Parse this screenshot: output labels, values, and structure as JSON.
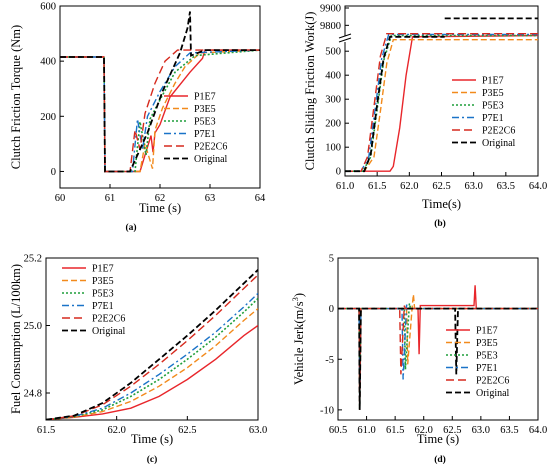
{
  "colors": {
    "P1E7": "#e8262b",
    "P3E5": "#f28a1c",
    "P5E3": "#1f9e3a",
    "P7E1": "#1a73c8",
    "P2E2C6": "#d62a1e",
    "Original": "#000000"
  },
  "chart_data": [
    {
      "type": "line",
      "panel_label": "(a)",
      "xlabel": "Time (s)",
      "ylabel": "Clutch Friction Torque (Nm)",
      "xlim": [
        60,
        64
      ],
      "ylim": [
        -60,
        600
      ],
      "xticks": [
        "60",
        "61",
        "62",
        "63",
        "64"
      ],
      "yticks": [
        "0",
        "200",
        "400",
        "600"
      ],
      "legend_position": "lower-right",
      "series": [
        {
          "name": "P1E7",
          "x": [
            60,
            60.88,
            60.9,
            61.6,
            61.82,
            61.86,
            61.9,
            62.0,
            62.2,
            62.6,
            62.85,
            62.9,
            64
          ],
          "y": [
            415,
            415,
            0,
            0,
            130,
            70,
            140,
            170,
            270,
            360,
            410,
            440,
            440
          ]
        },
        {
          "name": "P3E5",
          "x": [
            60,
            60.88,
            60.9,
            61.6,
            61.7,
            61.85,
            61.9,
            62.05,
            62.3,
            62.5,
            62.8,
            64
          ],
          "y": [
            415,
            415,
            0,
            0,
            100,
            10,
            150,
            230,
            320,
            380,
            430,
            440
          ]
        },
        {
          "name": "P5E3",
          "x": [
            60,
            60.88,
            60.9,
            61.5,
            61.6,
            61.72,
            61.8,
            62.0,
            62.3,
            62.7,
            64
          ],
          "y": [
            415,
            415,
            0,
            0,
            180,
            60,
            190,
            260,
            360,
            420,
            440
          ]
        },
        {
          "name": "P7E1",
          "x": [
            60,
            60.88,
            60.9,
            61.45,
            61.55,
            61.65,
            61.75,
            62.0,
            62.3,
            62.6,
            64
          ],
          "y": [
            415,
            415,
            0,
            0,
            190,
            80,
            200,
            290,
            380,
            430,
            440
          ]
        },
        {
          "name": "P2E2C6",
          "x": [
            60,
            60.88,
            60.9,
            61.4,
            61.5,
            61.6,
            61.7,
            61.9,
            62.1,
            62.35,
            64
          ],
          "y": [
            415,
            415,
            0,
            0,
            150,
            80,
            210,
            320,
            400,
            440,
            440
          ]
        },
        {
          "name": "Original",
          "x": [
            60,
            60.88,
            60.9,
            61.4,
            61.75,
            62.05,
            62.4,
            62.55,
            62.6,
            62.62,
            62.9,
            64
          ],
          "y": [
            415,
            415,
            0,
            0,
            140,
            290,
            430,
            520,
            580,
            420,
            440,
            440
          ]
        }
      ]
    },
    {
      "type": "line",
      "panel_label": "(b)",
      "xlabel": "Time(s)",
      "ylabel": "Clutch Sliding Friction Work(J)",
      "xlim": [
        61,
        64
      ],
      "ylim": [
        -20,
        600
      ],
      "axis_break": {
        "lower_top": 580,
        "upper_range": [
          9750,
          9900
        ]
      },
      "xticks": [
        "61.0",
        "61.5",
        "62.0",
        "62.5",
        "63.0",
        "63.5",
        "64.0"
      ],
      "yticks": [
        "0",
        "100",
        "200",
        "300",
        "400",
        "500",
        "9800",
        "9900"
      ],
      "legend_position": "right",
      "series": [
        {
          "name": "P1E7",
          "x": [
            61,
            61.7,
            61.75,
            61.85,
            61.95,
            62.05,
            64
          ],
          "y": [
            0,
            0,
            20,
            180,
            400,
            560,
            565
          ]
        },
        {
          "name": "P3E5",
          "x": [
            61,
            61.3,
            61.45,
            61.55,
            61.65,
            61.75,
            64
          ],
          "y": [
            0,
            0,
            60,
            250,
            450,
            548,
            548
          ]
        },
        {
          "name": "P5E3",
          "x": [
            61,
            61.28,
            61.4,
            61.5,
            61.6,
            61.72,
            64
          ],
          "y": [
            0,
            0,
            60,
            260,
            460,
            565,
            565
          ]
        },
        {
          "name": "P7E1",
          "x": [
            61,
            61.25,
            61.37,
            61.47,
            61.57,
            61.68,
            64
          ],
          "y": [
            0,
            0,
            60,
            260,
            470,
            570,
            570
          ]
        },
        {
          "name": "P2E2C6",
          "x": [
            61,
            61.25,
            61.35,
            61.45,
            61.55,
            61.65,
            64
          ],
          "y": [
            0,
            0,
            60,
            270,
            480,
            573,
            573
          ]
        },
        {
          "name": "Original",
          "x": [
            61,
            61.3,
            61.4,
            61.5,
            61.6,
            61.7,
            62.55
          ],
          "y": [
            0,
            0,
            70,
            280,
            470,
            560,
            560
          ],
          "upper_segment": {
            "x": [
              62.55,
              64
            ],
            "y": [
              9840,
              9840
            ]
          }
        }
      ]
    },
    {
      "type": "line",
      "panel_label": "(c)",
      "xlabel": "Time (s)",
      "ylabel": "Fuel Consumption (L/100km)",
      "xlim": [
        61.5,
        63
      ],
      "ylim": [
        24.72,
        25.2
      ],
      "xticks": [
        "61.5",
        "62.0",
        "62.5",
        "63.0"
      ],
      "yticks": [
        "24.8",
        "25.0",
        "25.2"
      ],
      "legend_position": "top-left",
      "series": [
        {
          "name": "P1E7",
          "x": [
            61.5,
            61.7,
            61.9,
            62.1,
            62.3,
            62.5,
            62.7,
            62.9,
            63
          ],
          "y": [
            24.721,
            24.728,
            24.738,
            24.755,
            24.79,
            24.84,
            24.9,
            24.97,
            25.0
          ]
        },
        {
          "name": "P3E5",
          "x": [
            61.5,
            61.7,
            61.9,
            62.1,
            62.3,
            62.5,
            62.7,
            62.9,
            63
          ],
          "y": [
            24.721,
            24.729,
            24.745,
            24.775,
            24.82,
            24.875,
            24.94,
            25.015,
            25.05
          ]
        },
        {
          "name": "P5E3",
          "x": [
            61.5,
            61.7,
            61.9,
            62.1,
            62.3,
            62.5,
            62.7,
            62.9,
            63
          ],
          "y": [
            24.721,
            24.73,
            24.75,
            24.79,
            24.84,
            24.9,
            24.965,
            25.04,
            25.08
          ]
        },
        {
          "name": "P7E1",
          "x": [
            61.5,
            61.7,
            61.9,
            62.1,
            62.3,
            62.5,
            62.7,
            62.9,
            63
          ],
          "y": [
            24.721,
            24.731,
            24.755,
            24.8,
            24.855,
            24.915,
            24.98,
            25.055,
            25.095
          ]
        },
        {
          "name": "P2E2C6",
          "x": [
            61.5,
            61.7,
            61.9,
            62.1,
            62.3,
            62.5,
            62.7,
            62.9,
            63
          ],
          "y": [
            24.721,
            24.732,
            24.765,
            24.82,
            24.885,
            24.955,
            25.03,
            25.11,
            25.15
          ]
        },
        {
          "name": "Original",
          "x": [
            61.5,
            61.7,
            61.9,
            62.1,
            62.3,
            62.5,
            62.7,
            62.9,
            63
          ],
          "y": [
            24.721,
            24.733,
            24.77,
            24.83,
            24.9,
            24.97,
            25.045,
            25.125,
            25.165
          ]
        }
      ]
    },
    {
      "type": "line",
      "panel_label": "(d)",
      "xlabel": "Time (s)",
      "ylabel": "Vehicle Jerk(m/s",
      "ylabel_sup": "3",
      "ylabel_end": ")",
      "xlim": [
        60.5,
        64
      ],
      "ylim": [
        -11,
        5
      ],
      "xticks": [
        "60.5",
        "61.0",
        "61.5",
        "62.0",
        "62.5",
        "63.0",
        "63.5",
        "64.0"
      ],
      "yticks": [
        "5",
        "0",
        "-5",
        "-10"
      ],
      "legend_position": "lower-right",
      "series": [
        {
          "name": "P1E7",
          "x": [
            60.5,
            60.87,
            60.88,
            60.9,
            61.9,
            61.92,
            61.94,
            62.0,
            62.88,
            62.9,
            62.92,
            64
          ],
          "y": [
            0,
            0,
            -10,
            0,
            0,
            -4.5,
            0.3,
            0.3,
            0.3,
            2.3,
            0,
            0
          ]
        },
        {
          "name": "P3E5",
          "x": [
            60.5,
            60.87,
            60.88,
            60.9,
            61.7,
            61.72,
            61.8,
            61.82,
            61.84,
            64
          ],
          "y": [
            0,
            0,
            -10,
            0,
            0,
            -5.5,
            0.3,
            1.4,
            0,
            0
          ]
        },
        {
          "name": "P5E3",
          "x": [
            60.5,
            60.87,
            60.88,
            60.9,
            61.66,
            61.68,
            61.75,
            61.77,
            64
          ],
          "y": [
            0,
            0,
            -10,
            0,
            0,
            -6,
            0.5,
            0,
            0
          ]
        },
        {
          "name": "P7E1",
          "x": [
            60.5,
            60.87,
            60.88,
            60.9,
            61.62,
            61.64,
            61.7,
            61.72,
            64
          ],
          "y": [
            0,
            0,
            -10,
            0,
            0,
            -7,
            0.4,
            0,
            0
          ]
        },
        {
          "name": "P2E2C6",
          "x": [
            60.5,
            60.87,
            60.88,
            60.9,
            61.58,
            61.6,
            61.66,
            61.68,
            64
          ],
          "y": [
            0,
            0,
            -10,
            0,
            0,
            -6.5,
            0.3,
            0,
            0
          ]
        },
        {
          "name": "Original",
          "x": [
            60.5,
            60.87,
            60.88,
            60.9,
            62.55,
            62.57,
            62.6,
            64
          ],
          "y": [
            0,
            0,
            -10,
            0,
            0,
            -6.5,
            0,
            0
          ]
        }
      ]
    }
  ]
}
